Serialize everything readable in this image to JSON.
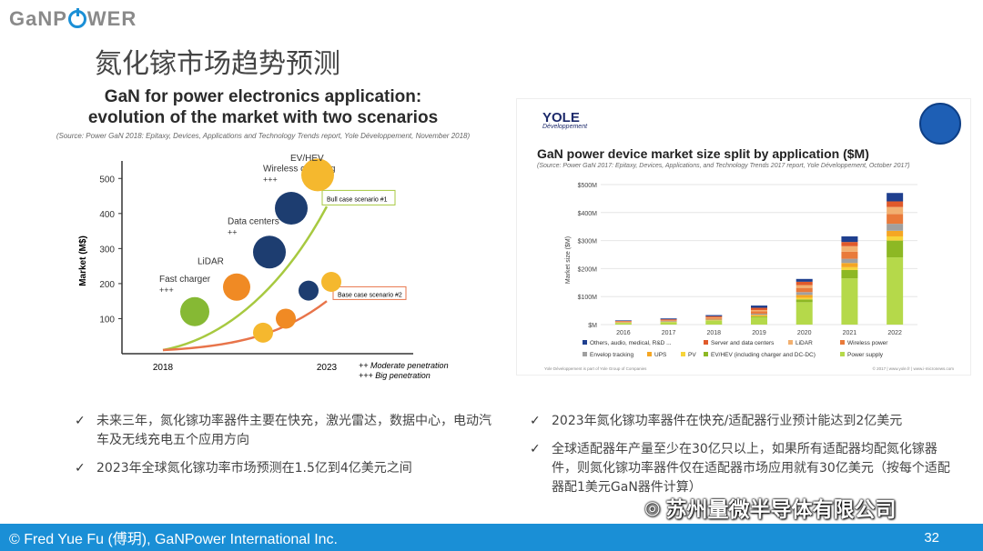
{
  "header": {
    "logo_text_a": "GaNP",
    "logo_text_b": "WER",
    "title": "氮化镓市场趋势预测"
  },
  "left_chart": {
    "title_line1": "GaN for power electronics application:",
    "title_line2": "evolution of the market with two scenarios",
    "source": "(Source: Power GaN 2018: Epitaxy, Devices, Applications and Technology Trends report, Yole Développement, November 2018)",
    "chart_data": {
      "type": "line",
      "ylabel": "Market (M$)",
      "yticks": [
        100,
        200,
        300,
        400,
        500
      ],
      "xticks": [
        "2018",
        "2023"
      ],
      "series": [
        {
          "name": "Bull case scenario #1",
          "color": "#a7c940"
        },
        {
          "name": "Base case scenario #2",
          "color": "#e8744a"
        }
      ],
      "applications": [
        {
          "label": "Fast charger",
          "plus": "+++",
          "color": "#86b934"
        },
        {
          "label": "LiDAR",
          "plus": "",
          "color": "#f08a24"
        },
        {
          "label": "Data centers",
          "plus": "++",
          "color": "#1d3d70"
        },
        {
          "label": "Wireless charging",
          "plus": "+++",
          "color": "#1d3d70"
        },
        {
          "label": "EV/HEV",
          "plus": "",
          "color": "#f5b82e"
        }
      ],
      "legend_moderate": "++ Moderate penetration",
      "legend_big": "+++ Big penetration"
    }
  },
  "right_chart": {
    "brand": "YOLE",
    "brand_sub": "Développement",
    "title": "GaN power device market size split by application ($M)",
    "source": "(Source: Power GaN 2017: Epitaxy, Devices, Applications, and Technology Trends 2017 report, Yole Développement, October 2017)",
    "chart_data": {
      "type": "bar",
      "stacked": true,
      "ylabel": "Market size ($M)",
      "ytick_labels": [
        "$M",
        "$100M",
        "$200M",
        "$300M",
        "$400M",
        "$500M"
      ],
      "ylim": [
        0,
        500
      ],
      "categories": [
        "2016",
        "2017",
        "2018",
        "2019",
        "2020",
        "2021",
        "2022"
      ],
      "series": [
        {
          "name": "Power supply",
          "color": "#b5d94a",
          "values": [
            6,
            9,
            14,
            26,
            80,
            165,
            240
          ]
        },
        {
          "name": "EV/HEV (including charger and DC-DC)",
          "color": "#8db824",
          "values": [
            0,
            0,
            1,
            3,
            10,
            30,
            60
          ]
        },
        {
          "name": "PV",
          "color": "#f7d43a",
          "values": [
            1,
            1,
            1,
            2,
            6,
            10,
            15
          ]
        },
        {
          "name": "UPS",
          "color": "#f5a623",
          "values": [
            1,
            1,
            2,
            4,
            10,
            15,
            20
          ]
        },
        {
          "name": "Envelop tracking",
          "color": "#a0a0a0",
          "values": [
            1,
            2,
            2,
            4,
            10,
            15,
            25
          ]
        },
        {
          "name": "Wireless power",
          "color": "#e97a3a",
          "values": [
            1,
            2,
            4,
            8,
            15,
            25,
            35
          ]
        },
        {
          "name": "LiDAR",
          "color": "#f2b070",
          "values": [
            1,
            1,
            2,
            5,
            10,
            20,
            25
          ]
        },
        {
          "name": "Server and data centers",
          "color": "#e05a2b",
          "values": [
            2,
            3,
            4,
            8,
            12,
            15,
            20
          ]
        },
        {
          "name": "Others, audio, medical, R&D ...",
          "color": "#1f3f8f",
          "values": [
            2,
            3,
            4,
            8,
            10,
            20,
            30
          ]
        }
      ],
      "legend_order": [
        "Others, audio, medical, R&D ...",
        "Server and data centers",
        "LiDAR",
        "Wireless power",
        "Envelop tracking",
        "UPS",
        "PV",
        "EV/HEV (including charger and DC-DC)",
        "Power supply"
      ],
      "footer_left": "Yole Développement is part of Yole Group of Companies",
      "footer_right": "© 2017 | www.yole.fr | www.i-micronews.com"
    }
  },
  "bullets_left": [
    "未来三年，氮化镓功率器件主要在快充，激光雷达，数据中心，电动汽车及无线充电五个应用方向",
    "2023年全球氮化镓功率市场预测在1.5亿到4亿美元之间"
  ],
  "bullets_right": [
    "2023年氮化镓功率器件在快充/适配器行业预计能达到2亿美元",
    "全球适配器年产量至少在30亿只以上，如果所有适配器均配氮化镓器件，则氮化镓功率器件仅在适配器市场应用就有30亿美元（按每个适配器配1美元GaN器件计算）"
  ],
  "check_glyph": "✓",
  "watermark": "苏州量微半导体有限公司",
  "footer": {
    "text": "© Fred Yue Fu (傅玥), GaNPower International Inc.",
    "page": "32"
  }
}
